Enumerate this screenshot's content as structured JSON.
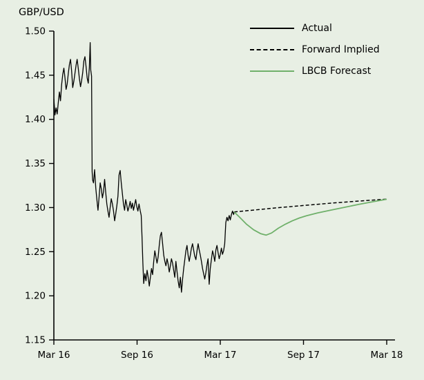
{
  "title": "GBP/USD",
  "colors": {
    "background": "#e8efe4",
    "axis": "#000000",
    "text": "#000000",
    "actual": "#000000",
    "forward_implied": "#000000",
    "lbcb_forecast": "#6fb06a"
  },
  "chart_data": {
    "type": "line",
    "title": "GBP/USD",
    "legend_position": "top-right",
    "grid": false,
    "x_axis": {
      "unit": "months since Mar 2016",
      "min": 0,
      "max": 24,
      "ticks": [
        {
          "pos": 0,
          "label": "Mar 16"
        },
        {
          "pos": 6,
          "label": "Sep 16"
        },
        {
          "pos": 12,
          "label": "Mar 17"
        },
        {
          "pos": 18,
          "label": "Sep 17"
        },
        {
          "pos": 24,
          "label": "Mar 18"
        }
      ]
    },
    "y_axis": {
      "min": 1.15,
      "max": 1.5,
      "ticks": [
        {
          "value": 1.15,
          "label": "1.15"
        },
        {
          "value": 1.2,
          "label": "1.20"
        },
        {
          "value": 1.25,
          "label": "1.25"
        },
        {
          "value": 1.3,
          "label": "1.30"
        },
        {
          "value": 1.35,
          "label": "1.35"
        },
        {
          "value": 1.4,
          "label": "1.40"
        },
        {
          "value": 1.45,
          "label": "1.45"
        },
        {
          "value": 1.5,
          "label": "1.50"
        }
      ]
    },
    "series": [
      {
        "name": "Actual",
        "style": "solid",
        "color": "#000000",
        "width": 1.3,
        "points": [
          [
            0.0,
            1.423
          ],
          [
            0.08,
            1.405
          ],
          [
            0.16,
            1.413
          ],
          [
            0.24,
            1.406
          ],
          [
            0.32,
            1.419
          ],
          [
            0.4,
            1.431
          ],
          [
            0.48,
            1.421
          ],
          [
            0.56,
            1.439
          ],
          [
            0.64,
            1.451
          ],
          [
            0.72,
            1.458
          ],
          [
            0.8,
            1.447
          ],
          [
            0.88,
            1.434
          ],
          [
            0.96,
            1.44
          ],
          [
            1.04,
            1.452
          ],
          [
            1.12,
            1.462
          ],
          [
            1.2,
            1.468
          ],
          [
            1.28,
            1.455
          ],
          [
            1.36,
            1.436
          ],
          [
            1.44,
            1.443
          ],
          [
            1.52,
            1.452
          ],
          [
            1.6,
            1.461
          ],
          [
            1.68,
            1.468
          ],
          [
            1.76,
            1.458
          ],
          [
            1.84,
            1.446
          ],
          [
            1.92,
            1.437
          ],
          [
            2.0,
            1.444
          ],
          [
            2.08,
            1.453
          ],
          [
            2.16,
            1.466
          ],
          [
            2.24,
            1.471
          ],
          [
            2.32,
            1.46
          ],
          [
            2.4,
            1.447
          ],
          [
            2.48,
            1.441
          ],
          [
            2.56,
            1.459
          ],
          [
            2.62,
            1.487
          ],
          [
            2.66,
            1.456
          ],
          [
            2.72,
            1.449
          ],
          [
            2.76,
            1.341
          ],
          [
            2.8,
            1.331
          ],
          [
            2.86,
            1.328
          ],
          [
            2.94,
            1.343
          ],
          [
            3.02,
            1.322
          ],
          [
            3.1,
            1.309
          ],
          [
            3.18,
            1.297
          ],
          [
            3.26,
            1.312
          ],
          [
            3.34,
            1.328
          ],
          [
            3.42,
            1.321
          ],
          [
            3.5,
            1.311
          ],
          [
            3.58,
            1.318
          ],
          [
            3.66,
            1.332
          ],
          [
            3.74,
            1.317
          ],
          [
            3.82,
            1.304
          ],
          [
            3.9,
            1.296
          ],
          [
            3.98,
            1.289
          ],
          [
            4.06,
            1.3
          ],
          [
            4.14,
            1.31
          ],
          [
            4.22,
            1.304
          ],
          [
            4.3,
            1.296
          ],
          [
            4.38,
            1.285
          ],
          [
            4.46,
            1.293
          ],
          [
            4.54,
            1.302
          ],
          [
            4.62,
            1.313
          ],
          [
            4.7,
            1.337
          ],
          [
            4.78,
            1.342
          ],
          [
            4.86,
            1.328
          ],
          [
            4.94,
            1.316
          ],
          [
            5.02,
            1.304
          ],
          [
            5.1,
            1.297
          ],
          [
            5.18,
            1.309
          ],
          [
            5.26,
            1.303
          ],
          [
            5.34,
            1.296
          ],
          [
            5.42,
            1.301
          ],
          [
            5.5,
            1.307
          ],
          [
            5.58,
            1.299
          ],
          [
            5.66,
            1.305
          ],
          [
            5.74,
            1.297
          ],
          [
            5.82,
            1.303
          ],
          [
            5.9,
            1.309
          ],
          [
            5.98,
            1.301
          ],
          [
            6.06,
            1.296
          ],
          [
            6.14,
            1.304
          ],
          [
            6.22,
            1.297
          ],
          [
            6.3,
            1.291
          ],
          [
            6.36,
            1.266
          ],
          [
            6.42,
            1.237
          ],
          [
            6.48,
            1.214
          ],
          [
            6.56,
            1.225
          ],
          [
            6.64,
            1.217
          ],
          [
            6.72,
            1.229
          ],
          [
            6.8,
            1.221
          ],
          [
            6.88,
            1.211
          ],
          [
            6.96,
            1.221
          ],
          [
            7.04,
            1.231
          ],
          [
            7.12,
            1.224
          ],
          [
            7.2,
            1.239
          ],
          [
            7.28,
            1.251
          ],
          [
            7.36,
            1.244
          ],
          [
            7.44,
            1.237
          ],
          [
            7.52,
            1.244
          ],
          [
            7.6,
            1.257
          ],
          [
            7.68,
            1.268
          ],
          [
            7.76,
            1.272
          ],
          [
            7.84,
            1.259
          ],
          [
            7.92,
            1.246
          ],
          [
            8.0,
            1.239
          ],
          [
            8.08,
            1.234
          ],
          [
            8.16,
            1.242
          ],
          [
            8.24,
            1.236
          ],
          [
            8.32,
            1.227
          ],
          [
            8.4,
            1.234
          ],
          [
            8.48,
            1.242
          ],
          [
            8.56,
            1.237
          ],
          [
            8.64,
            1.229
          ],
          [
            8.72,
            1.221
          ],
          [
            8.8,
            1.239
          ],
          [
            8.88,
            1.228
          ],
          [
            8.96,
            1.217
          ],
          [
            9.04,
            1.209
          ],
          [
            9.12,
            1.221
          ],
          [
            9.2,
            1.204
          ],
          [
            9.28,
            1.219
          ],
          [
            9.36,
            1.231
          ],
          [
            9.44,
            1.241
          ],
          [
            9.52,
            1.251
          ],
          [
            9.6,
            1.257
          ],
          [
            9.68,
            1.246
          ],
          [
            9.76,
            1.239
          ],
          [
            9.84,
            1.246
          ],
          [
            9.92,
            1.254
          ],
          [
            10.0,
            1.259
          ],
          [
            10.08,
            1.252
          ],
          [
            10.16,
            1.245
          ],
          [
            10.24,
            1.241
          ],
          [
            10.32,
            1.251
          ],
          [
            10.4,
            1.259
          ],
          [
            10.48,
            1.252
          ],
          [
            10.56,
            1.246
          ],
          [
            10.64,
            1.239
          ],
          [
            10.72,
            1.231
          ],
          [
            10.8,
            1.225
          ],
          [
            10.88,
            1.219
          ],
          [
            10.96,
            1.226
          ],
          [
            11.04,
            1.235
          ],
          [
            11.12,
            1.242
          ],
          [
            11.2,
            1.213
          ],
          [
            11.28,
            1.231
          ],
          [
            11.36,
            1.241
          ],
          [
            11.44,
            1.251
          ],
          [
            11.52,
            1.246
          ],
          [
            11.6,
            1.239
          ],
          [
            11.68,
            1.252
          ],
          [
            11.76,
            1.257
          ],
          [
            11.84,
            1.249
          ],
          [
            11.92,
            1.242
          ],
          [
            12.0,
            1.247
          ],
          [
            12.08,
            1.254
          ],
          [
            12.16,
            1.247
          ],
          [
            12.24,
            1.251
          ],
          [
            12.32,
            1.259
          ],
          [
            12.4,
            1.283
          ],
          [
            12.48,
            1.289
          ],
          [
            12.56,
            1.285
          ],
          [
            12.64,
            1.291
          ],
          [
            12.72,
            1.286
          ],
          [
            12.8,
            1.292
          ],
          [
            12.88,
            1.296
          ],
          [
            12.96,
            1.292
          ],
          [
            13.0,
            1.295
          ]
        ]
      },
      {
        "name": "Forward Implied",
        "style": "dashed",
        "color": "#000000",
        "width": 1.5,
        "points": [
          [
            13.0,
            1.295
          ],
          [
            14,
            1.2966
          ],
          [
            15,
            1.2981
          ],
          [
            16,
            1.2996
          ],
          [
            17,
            1.301
          ],
          [
            18,
            1.3024
          ],
          [
            19,
            1.3037
          ],
          [
            20,
            1.305
          ],
          [
            21,
            1.3062
          ],
          [
            22,
            1.3074
          ],
          [
            23,
            1.3085
          ],
          [
            24,
            1.3096
          ]
        ]
      },
      {
        "name": "LBCB Forecast",
        "style": "solid",
        "color": "#6fb06a",
        "width": 1.8,
        "points": [
          [
            13.0,
            1.295
          ],
          [
            13.4,
            1.289
          ],
          [
            13.9,
            1.281
          ],
          [
            14.4,
            1.2748
          ],
          [
            14.9,
            1.2705
          ],
          [
            15.3,
            1.2688
          ],
          [
            15.7,
            1.2712
          ],
          [
            16.2,
            1.2768
          ],
          [
            16.7,
            1.2812
          ],
          [
            17.2,
            1.285
          ],
          [
            17.7,
            1.2882
          ],
          [
            18.2,
            1.2906
          ],
          [
            19.0,
            1.2938
          ],
          [
            20.0,
            1.2972
          ],
          [
            21.0,
            1.3004
          ],
          [
            22.0,
            1.3036
          ],
          [
            23.0,
            1.3066
          ],
          [
            24.0,
            1.3094
          ]
        ]
      }
    ]
  }
}
